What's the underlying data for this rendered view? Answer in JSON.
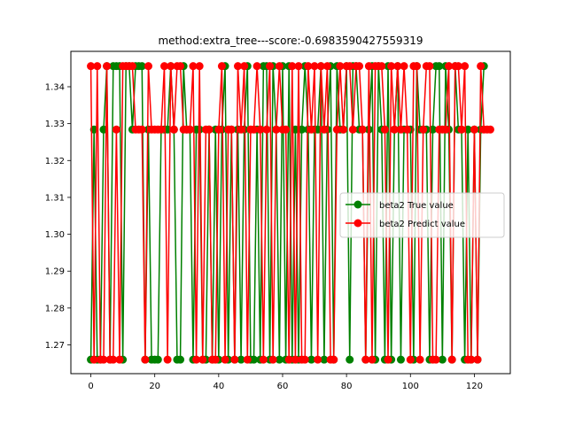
{
  "chart_data": {
    "type": "line",
    "title": "method:extra_tree---score:-0.6983590427559319",
    "xlabel": "",
    "ylabel": "",
    "xlim": [
      -6.25,
      131.25
    ],
    "ylim": [
      1.2622,
      1.3496
    ],
    "x_ticks": [
      0,
      20,
      40,
      60,
      80,
      100,
      120
    ],
    "y_ticks": [
      1.27,
      1.28,
      1.29,
      1.3,
      1.31,
      1.32,
      1.33,
      1.34
    ],
    "y_tick_labels": [
      "1.27",
      "1.28",
      "1.29",
      "1.30",
      "1.31",
      "1.32",
      "1.33",
      "1.34"
    ],
    "grid": false,
    "legend_position": "center-right",
    "series": [
      {
        "name": "beta2 True value",
        "color": "#008000",
        "marker": "circle",
        "values": [
          1.266,
          1.3284,
          1.266,
          1.266,
          1.3284,
          1.3456,
          1.266,
          1.3456,
          1.3456,
          1.3456,
          1.266,
          1.3456,
          1.3456,
          1.3284,
          1.3456,
          1.3456,
          1.3456,
          1.266,
          1.3284,
          1.266,
          1.266,
          1.266,
          1.3284,
          1.3284,
          1.3284,
          1.3456,
          1.3284,
          1.266,
          1.266,
          1.3456,
          1.3284,
          1.3284,
          1.266,
          1.3284,
          1.3284,
          1.266,
          1.266,
          1.3284,
          1.266,
          1.3284,
          1.266,
          1.3284,
          1.3456,
          1.266,
          1.3284,
          1.266,
          1.3284,
          1.266,
          1.3284,
          1.3456,
          1.266,
          1.266,
          1.3284,
          1.266,
          1.3456,
          1.3456,
          1.266,
          1.3456,
          1.3284,
          1.266,
          1.3456,
          1.266,
          1.3456,
          1.266,
          1.3284,
          1.266,
          1.3284,
          1.3456,
          1.3284,
          1.266,
          1.3284,
          1.3284,
          1.3456,
          1.266,
          1.3284,
          1.3456,
          1.266,
          1.3456,
          1.3284,
          1.3284,
          1.3456,
          1.266,
          1.3456,
          1.3456,
          1.3284,
          1.3284,
          1.266,
          1.3284,
          1.3456,
          1.266,
          1.3456,
          1.3284,
          1.266,
          1.3456,
          1.266,
          1.3284,
          1.3456,
          1.266,
          1.3284,
          1.3284,
          1.3284,
          1.266,
          1.3456,
          1.3284,
          1.3284,
          1.3284,
          1.266,
          1.3284,
          1.3456,
          1.3456,
          1.266,
          1.3456,
          1.3284,
          1.266,
          1.3456,
          1.3284,
          1.3284,
          1.266,
          1.3284,
          1.266,
          1.3284,
          1.266,
          1.3284,
          1.3456
        ]
      },
      {
        "name": "beta2 Predict value",
        "color": "#ff0000",
        "marker": "circle",
        "values": [
          1.3456,
          1.266,
          1.3456,
          1.266,
          1.266,
          1.3456,
          1.266,
          1.266,
          1.3284,
          1.266,
          1.3456,
          1.3456,
          1.3456,
          1.3456,
          1.3284,
          1.3284,
          1.3284,
          1.266,
          1.3456,
          1.3284,
          1.3284,
          1.3284,
          1.3284,
          1.3456,
          1.266,
          1.3456,
          1.3284,
          1.3456,
          1.3456,
          1.3284,
          1.3284,
          1.3284,
          1.3456,
          1.266,
          1.3456,
          1.266,
          1.3284,
          1.3284,
          1.266,
          1.266,
          1.3284,
          1.3456,
          1.266,
          1.3284,
          1.3284,
          1.266,
          1.3456,
          1.3284,
          1.3456,
          1.266,
          1.3284,
          1.3284,
          1.3456,
          1.3284,
          1.266,
          1.3284,
          1.3456,
          1.266,
          1.3284,
          1.3456,
          1.3284,
          1.3284,
          1.266,
          1.3456,
          1.266,
          1.3456,
          1.266,
          1.266,
          1.3456,
          1.3284,
          1.3456,
          1.266,
          1.3456,
          1.3284,
          1.3456,
          1.266,
          1.266,
          1.3284,
          1.3456,
          1.3284,
          1.3456,
          1.3456,
          1.3284,
          1.3456,
          1.3456,
          1.3284,
          1.266,
          1.3456,
          1.266,
          1.3456,
          1.3456,
          1.3456,
          1.3284,
          1.266,
          1.3456,
          1.3284,
          1.3456,
          1.3284,
          1.3456,
          1.3284,
          1.266,
          1.3456,
          1.3456,
          1.266,
          1.3284,
          1.3456,
          1.3456,
          1.266,
          1.266,
          1.3284,
          1.3284,
          1.3284,
          1.3456,
          1.266,
          1.3456,
          1.3456,
          1.3284,
          1.3456,
          1.266,
          1.266,
          1.3284,
          1.266,
          1.3456,
          1.3284,
          1.3284,
          1.3284
        ]
      }
    ]
  }
}
